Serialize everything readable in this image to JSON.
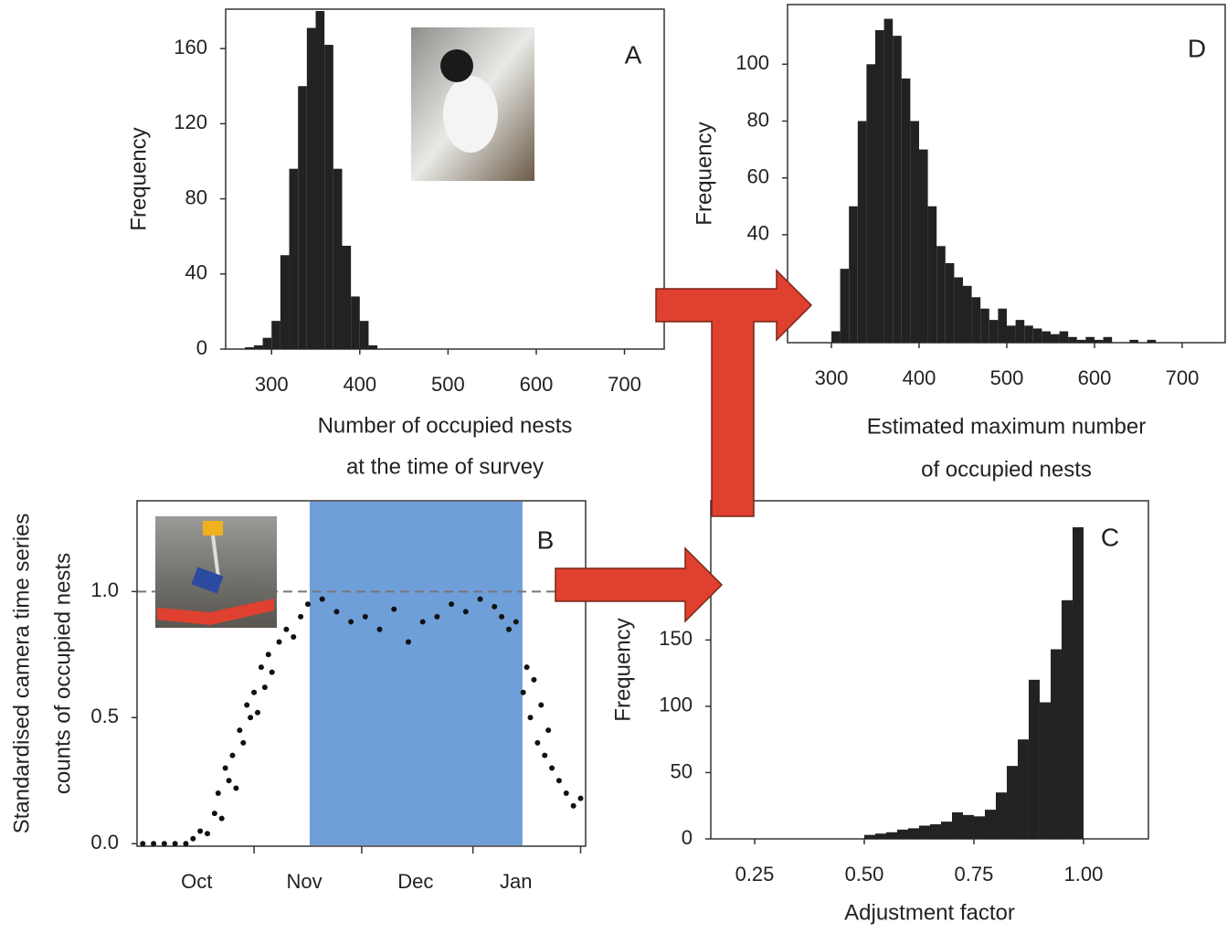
{
  "chart_data": [
    {
      "type": "histogram",
      "panel": "A",
      "xlabel": [
        "Number of occupied nests",
        "at the time of survey"
      ],
      "ylabel": "Frequency",
      "bins": [
        270,
        280,
        290,
        300,
        310,
        320,
        330,
        340,
        350,
        360,
        370,
        380,
        390,
        400,
        410,
        420
      ],
      "counts": [
        1,
        2,
        6,
        15,
        50,
        96,
        140,
        171,
        180,
        162,
        96,
        55,
        28,
        15,
        2
      ],
      "color": "#222222",
      "xlim": [
        248,
        745
      ],
      "xticks": [
        300,
        400,
        500,
        600,
        700
      ],
      "ylim": [
        0,
        181
      ],
      "yticks": [
        0,
        40,
        80,
        120,
        160
      ]
    },
    {
      "type": "scatter",
      "panel": "B",
      "ylabel": [
        "Standardised camera time series",
        "counts of occupied nests"
      ],
      "x": [
        0,
        3,
        6,
        9,
        12,
        14,
        16,
        18,
        20,
        21,
        22,
        23,
        24,
        25,
        26,
        27,
        28,
        29,
        30,
        31,
        32,
        33,
        34,
        35,
        36,
        38,
        40,
        42,
        44,
        46,
        50,
        54,
        58,
        62,
        66,
        70,
        74,
        78,
        82,
        86,
        90,
        94,
        98,
        100,
        102,
        104,
        106,
        107,
        108,
        109,
        110,
        111,
        112,
        113,
        114,
        116,
        118,
        120,
        122
      ],
      "y": [
        0,
        0,
        0,
        0,
        0,
        0.02,
        0.05,
        0.04,
        0.12,
        0.2,
        0.1,
        0.3,
        0.25,
        0.35,
        0.22,
        0.45,
        0.4,
        0.55,
        0.5,
        0.6,
        0.52,
        0.7,
        0.62,
        0.75,
        0.68,
        0.8,
        0.85,
        0.82,
        0.9,
        0.95,
        0.97,
        0.92,
        0.88,
        0.9,
        0.85,
        0.93,
        0.8,
        0.88,
        0.9,
        0.95,
        0.92,
        0.97,
        0.94,
        0.9,
        0.85,
        0.88,
        0.6,
        0.7,
        0.5,
        0.65,
        0.4,
        0.55,
        0.35,
        0.45,
        0.3,
        0.25,
        0.2,
        0.15,
        0.18
      ],
      "color": "#111111",
      "span": [
        46.5,
        105.8
      ],
      "span_color": "#6f9fd8",
      "hline": 1,
      "xlim": [
        -1.6,
        123.4
      ],
      "xticks": [
        {
          "value": 15,
          "label": "Oct"
        },
        {
          "value": 45,
          "label": "Nov"
        },
        {
          "value": 76,
          "label": "Dec"
        },
        {
          "value": 104,
          "label": "Jan"
        }
      ],
      "xtick_marks": [
        31,
        61,
        92,
        122
      ],
      "ylim": [
        -0.01,
        1.36
      ],
      "yticks": [
        {
          "value": 0,
          "label": "0.0"
        },
        {
          "value": 0.5,
          "label": "0.5"
        },
        {
          "value": 1,
          "label": "1.0"
        }
      ]
    },
    {
      "type": "histogram",
      "panel": "C",
      "xlabel": "Adjustment factor",
      "ylabel": "Frequency",
      "bins": [
        0.5,
        0.525,
        0.55,
        0.575,
        0.6,
        0.625,
        0.65,
        0.675,
        0.7,
        0.725,
        0.75,
        0.775,
        0.8,
        0.825,
        0.85,
        0.875,
        0.9,
        0.925,
        0.95,
        0.975,
        1.0
      ],
      "counts": [
        3,
        4,
        5,
        7,
        8,
        10,
        11,
        13,
        20,
        18,
        17,
        22,
        35,
        55,
        75,
        120,
        103,
        143,
        180,
        235
      ],
      "color": "#222222",
      "xlim": [
        0.15,
        1.148
      ],
      "xticks": [
        0.25,
        {
          "value": 0.5,
          "label": "0.50"
        },
        0.75,
        {
          "value": 1,
          "label": "1.00"
        }
      ],
      "ylim": [
        0,
        255
      ],
      "yticks": [
        0,
        50,
        100,
        150
      ]
    },
    {
      "type": "histogram",
      "panel": "D",
      "xlabel": [
        "Estimated maximum number",
        "of occupied nests"
      ],
      "ylabel": "Frequency",
      "bins": [
        300,
        310,
        320,
        330,
        340,
        350,
        360,
        370,
        380,
        390,
        400,
        410,
        420,
        430,
        440,
        450,
        460,
        470,
        480,
        490,
        500,
        510,
        520,
        530,
        540,
        550,
        560,
        570,
        580,
        590,
        600,
        610,
        620,
        630,
        640,
        650,
        660,
        670,
        680,
        690,
        700
      ],
      "counts": [
        6,
        28,
        50,
        80,
        100,
        112,
        116,
        110,
        95,
        80,
        70,
        50,
        36,
        30,
        25,
        22,
        18,
        14,
        10,
        14,
        8,
        10,
        8,
        7,
        6,
        5,
        6,
        4,
        3,
        4,
        3,
        4,
        2,
        2,
        3,
        2,
        3,
        2,
        2,
        2
      ],
      "color": "#222222",
      "xlim": [
        250,
        749
      ],
      "xticks": [
        300,
        400,
        500,
        600,
        700
      ],
      "ylim": [
        2,
        121
      ],
      "yticks": [
        40,
        60,
        80,
        100
      ]
    }
  ]
}
